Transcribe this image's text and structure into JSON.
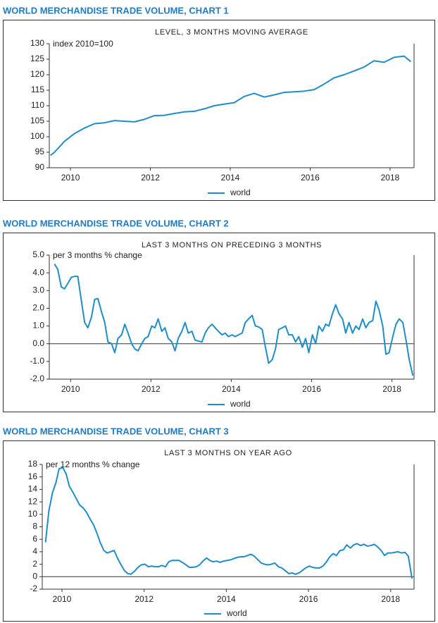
{
  "chart_data": [
    {
      "type": "line",
      "title": "WORLD MERCHANDISE TRADE VOLUME, CHART 1",
      "subtitle": "LEVEL, 3 MONTHS MOVING AVERAGE",
      "y_label": "index 2010=100",
      "x": [
        2009.5,
        2009.6,
        2009.85,
        2010.1,
        2010.35,
        2010.6,
        2010.85,
        2011.1,
        2011.35,
        2011.6,
        2011.85,
        2012.1,
        2012.35,
        2012.6,
        2012.85,
        2013.1,
        2013.35,
        2013.6,
        2013.85,
        2014.1,
        2014.35,
        2014.6,
        2014.85,
        2015.1,
        2015.35,
        2015.6,
        2015.85,
        2016.1,
        2016.35,
        2016.6,
        2016.85,
        2017.1,
        2017.35,
        2017.6,
        2017.85,
        2018.1,
        2018.35,
        2018.52
      ],
      "series": [
        {
          "name": "world",
          "color": "#1f8dc8",
          "values": [
            94.0,
            95,
            98.5,
            101,
            102.8,
            104.2,
            104.5,
            105.2,
            105,
            104.8,
            105.6,
            106.8,
            106.9,
            107.5,
            108,
            108.2,
            109,
            110,
            110.5,
            111,
            113,
            114,
            112.8,
            113.5,
            114.3,
            114.5,
            114.7,
            115.2,
            117,
            119,
            120,
            121.2,
            122.5,
            124.5,
            124,
            125.6,
            126,
            124.2
          ]
        }
      ],
      "xlim": [
        2009.47,
        2018.6
      ],
      "xticks": [
        2010,
        2012,
        2014,
        2016,
        2018
      ],
      "ylim": [
        90,
        130
      ],
      "yticks": [
        90,
        95,
        100,
        105,
        110,
        115,
        120,
        125,
        130
      ],
      "zero_line": false,
      "legend": "bottom"
    },
    {
      "type": "line",
      "title": "WORLD MERCHANDISE TRADE VOLUME, CHART 2",
      "subtitle": "LAST 3 MONTHS ON PRECEDING 3 MONTHS",
      "y_label": "per 3 months % change",
      "x": [
        2009.6,
        2009.68,
        2009.77,
        2009.85,
        2009.93,
        2010.02,
        2010.1,
        2010.18,
        2010.27,
        2010.35,
        2010.43,
        2010.52,
        2010.6,
        2010.68,
        2010.77,
        2010.85,
        2010.93,
        2011.02,
        2011.1,
        2011.18,
        2011.27,
        2011.35,
        2011.43,
        2011.52,
        2011.6,
        2011.68,
        2011.77,
        2011.85,
        2011.93,
        2012.02,
        2012.1,
        2012.18,
        2012.27,
        2012.35,
        2012.43,
        2012.52,
        2012.6,
        2012.68,
        2012.77,
        2012.85,
        2012.93,
        2013.02,
        2013.1,
        2013.18,
        2013.27,
        2013.35,
        2013.43,
        2013.52,
        2013.6,
        2013.68,
        2013.77,
        2013.85,
        2013.93,
        2014.02,
        2014.1,
        2014.18,
        2014.27,
        2014.35,
        2014.43,
        2014.52,
        2014.6,
        2014.68,
        2014.77,
        2014.85,
        2014.93,
        2015.02,
        2015.1,
        2015.18,
        2015.27,
        2015.35,
        2015.43,
        2015.52,
        2015.6,
        2015.68,
        2015.77,
        2015.85,
        2015.93,
        2016.02,
        2016.1,
        2016.18,
        2016.27,
        2016.35,
        2016.43,
        2016.52,
        2016.6,
        2016.68,
        2016.77,
        2016.85,
        2016.93,
        2017.02,
        2017.1,
        2017.18,
        2017.27,
        2017.35,
        2017.43,
        2017.52,
        2017.6,
        2017.68,
        2017.77,
        2017.85,
        2017.93,
        2018.02,
        2018.1,
        2018.18,
        2018.27,
        2018.35,
        2018.43,
        2018.52
      ],
      "series": [
        {
          "name": "world",
          "color": "#1f8dc8",
          "values": [
            4.5,
            4.2,
            3.2,
            3.1,
            3.4,
            3.75,
            3.8,
            3.8,
            2.4,
            1.2,
            0.9,
            1.5,
            2.5,
            2.55,
            1.8,
            1.2,
            0.1,
            0.0,
            -0.5,
            0.3,
            0.5,
            1.1,
            0.6,
            0.0,
            -0.3,
            -0.4,
            0.0,
            0.3,
            0.4,
            1.0,
            0.9,
            1.4,
            0.7,
            0.9,
            0.3,
            0.1,
            -0.4,
            0.3,
            0.7,
            1.2,
            0.6,
            0.7,
            0.2,
            0.15,
            0.1,
            0.6,
            0.9,
            1.1,
            0.9,
            0.7,
            0.5,
            0.6,
            0.4,
            0.5,
            0.4,
            0.5,
            0.6,
            1.2,
            1.4,
            1.6,
            1.0,
            0.95,
            0.8,
            -0.2,
            -1.1,
            -0.9,
            -0.3,
            0.8,
            0.9,
            1.0,
            0.5,
            0.5,
            0.1,
            0.4,
            -0.2,
            0.3,
            -0.5,
            0.5,
            0.0,
            1.0,
            0.7,
            1.1,
            1.0,
            1.7,
            2.2,
            1.7,
            1.4,
            0.6,
            1.2,
            0.6,
            1.0,
            0.8,
            1.4,
            0.9,
            1.2,
            1.3,
            2.4,
            1.9,
            1.0,
            -0.6,
            -0.5,
            0.4,
            1.1,
            1.4,
            1.2,
            0.2,
            -0.9,
            -1.8
          ]
        }
      ],
      "xlim": [
        2009.47,
        2018.55
      ],
      "xticks": [
        2010,
        2012,
        2014,
        2016,
        2018
      ],
      "ylim": [
        -2,
        5
      ],
      "yticks": [
        {
          "value": -2,
          "label": "-2.0"
        },
        {
          "value": -1,
          "label": "-1.0"
        },
        {
          "value": 0,
          "label": "0.0"
        },
        {
          "value": 1,
          "label": "1.0"
        },
        {
          "value": 2,
          "label": "2.0"
        },
        {
          "value": 3,
          "label": "3.0"
        },
        {
          "value": 4,
          "label": "4.0"
        },
        {
          "value": 5,
          "label": "5.0"
        }
      ],
      "zero_line": true,
      "legend": "bottom"
    },
    {
      "type": "line",
      "title": "WORLD MERCHANDISE TRADE VOLUME, CHART 3",
      "subtitle": "LAST 3 MONTHS ON YEAR AGO",
      "y_label": "per 12 months % change",
      "x": [
        2009.6,
        2009.68,
        2009.77,
        2009.85,
        2009.93,
        2010.02,
        2010.1,
        2010.18,
        2010.27,
        2010.35,
        2010.43,
        2010.52,
        2010.6,
        2010.68,
        2010.77,
        2010.85,
        2010.93,
        2011.02,
        2011.1,
        2011.18,
        2011.27,
        2011.35,
        2011.43,
        2011.52,
        2011.6,
        2011.68,
        2011.77,
        2011.85,
        2011.93,
        2012.02,
        2012.1,
        2012.18,
        2012.27,
        2012.35,
        2012.43,
        2012.52,
        2012.6,
        2012.68,
        2012.77,
        2012.85,
        2012.93,
        2013.02,
        2013.1,
        2013.18,
        2013.27,
        2013.35,
        2013.43,
        2013.52,
        2013.6,
        2013.68,
        2013.77,
        2013.85,
        2013.93,
        2014.02,
        2014.1,
        2014.18,
        2014.27,
        2014.35,
        2014.43,
        2014.52,
        2014.6,
        2014.68,
        2014.77,
        2014.85,
        2014.93,
        2015.02,
        2015.1,
        2015.18,
        2015.27,
        2015.35,
        2015.43,
        2015.52,
        2015.6,
        2015.68,
        2015.77,
        2015.85,
        2015.93,
        2016.02,
        2016.1,
        2016.18,
        2016.27,
        2016.35,
        2016.43,
        2016.52,
        2016.6,
        2016.68,
        2016.77,
        2016.85,
        2016.93,
        2017.02,
        2017.1,
        2017.18,
        2017.27,
        2017.35,
        2017.43,
        2017.52,
        2017.6,
        2017.68,
        2017.77,
        2017.85,
        2017.93,
        2018.02,
        2018.1,
        2018.18,
        2018.27,
        2018.35,
        2018.43,
        2018.52
      ],
      "series": [
        {
          "name": "world",
          "color": "#1f8dc8",
          "values": [
            5.5,
            10.5,
            13.5,
            15.0,
            17.3,
            17.5,
            16.5,
            14.5,
            13.5,
            12.5,
            11.5,
            11.0,
            10.3,
            9.3,
            8.3,
            7.0,
            5.5,
            4.2,
            3.8,
            4.0,
            4.2,
            3.0,
            2.0,
            1.0,
            0.5,
            0.4,
            0.9,
            1.5,
            1.9,
            2.0,
            1.6,
            1.7,
            1.6,
            1.6,
            1.8,
            1.6,
            2.4,
            2.6,
            2.6,
            2.6,
            2.3,
            1.9,
            1.5,
            1.5,
            1.6,
            1.9,
            2.5,
            3.0,
            2.6,
            2.4,
            2.5,
            2.3,
            2.5,
            2.6,
            2.7,
            2.9,
            3.1,
            3.2,
            3.2,
            3.4,
            3.6,
            3.3,
            2.7,
            2.2,
            2.0,
            1.9,
            2.0,
            2.2,
            1.6,
            1.4,
            1.0,
            0.5,
            0.6,
            0.4,
            0.6,
            1.0,
            1.4,
            1.7,
            1.5,
            1.4,
            1.4,
            1.7,
            2.3,
            3.2,
            3.7,
            3.4,
            4.2,
            4.3,
            5.1,
            4.6,
            5.1,
            5.3,
            5.0,
            5.2,
            4.9,
            5.0,
            5.2,
            4.8,
            4.2,
            3.4,
            3.8,
            3.8,
            3.9,
            4.0,
            3.8,
            3.9,
            3.3,
            -0.3
          ]
        }
      ],
      "xlim": [
        2009.52,
        2018.57
      ],
      "xticks": [
        2010,
        2012,
        2014,
        2016,
        2018
      ],
      "ylim": [
        -2,
        18
      ],
      "yticks": [
        -2,
        0,
        2,
        4,
        6,
        8,
        10,
        12,
        14,
        16,
        18
      ],
      "zero_line": true,
      "legend": "bottom"
    }
  ]
}
